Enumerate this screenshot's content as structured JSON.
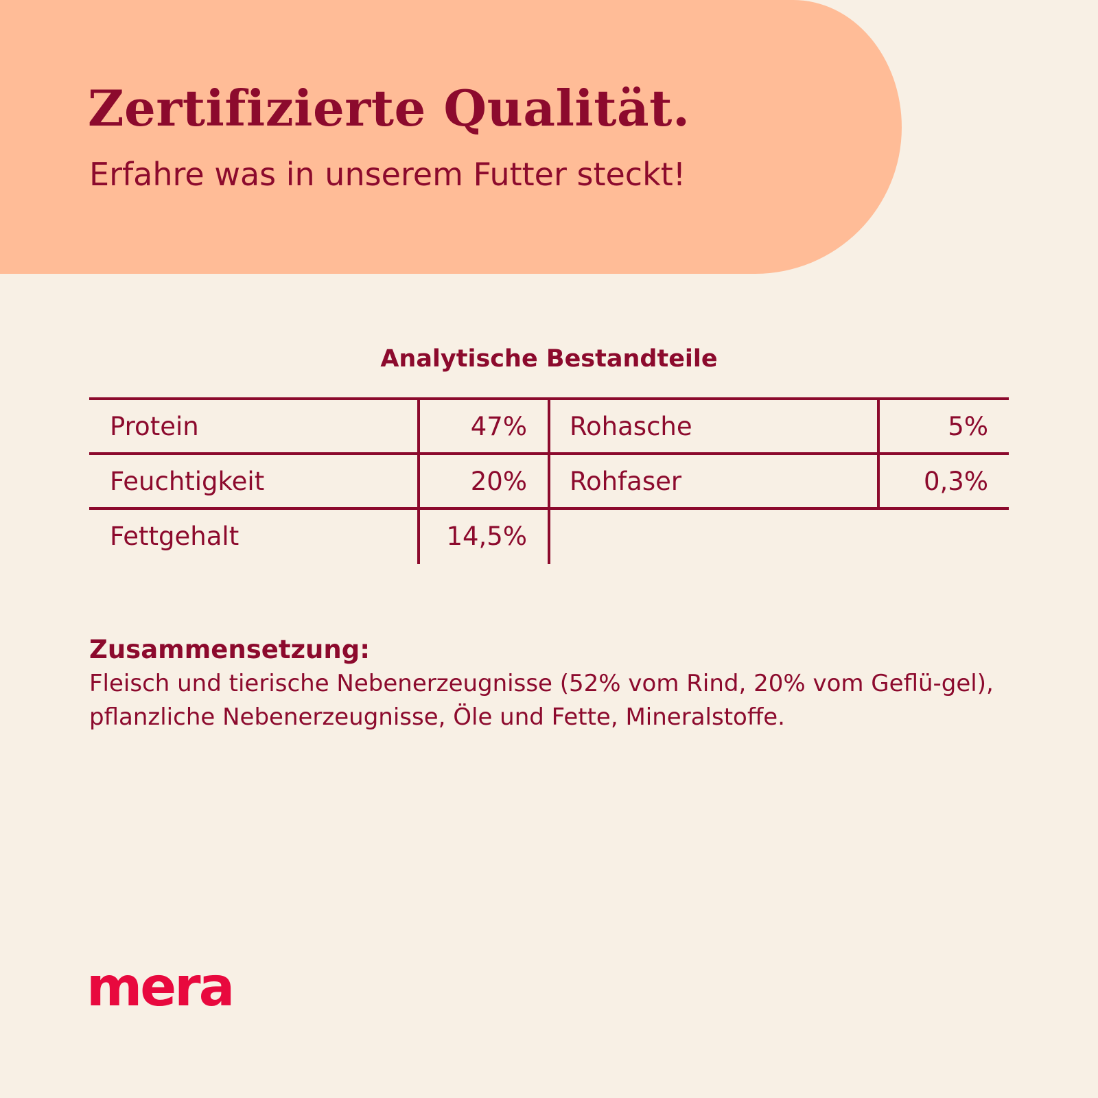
{
  "header": {
    "title": "Zertifizierte Qualität.",
    "subtitle": "Erfahre was in unserem Futter steckt!"
  },
  "analysis": {
    "title": "Analytische Bestandteile",
    "rows": [
      [
        {
          "label": "Protein",
          "value": "47%"
        },
        {
          "label": "Rohasche",
          "value": "5%"
        }
      ],
      [
        {
          "label": "Feuchtigkeit",
          "value": "20%"
        },
        {
          "label": "Rohfaser",
          "value": "0,3%"
        }
      ],
      [
        {
          "label": "Fettgehalt",
          "value": "14,5%"
        }
      ]
    ]
  },
  "composition": {
    "title": "Zusammensetzung:",
    "text": "Fleisch und tierische Nebenerzeugnisse (52% vom Rind, 20% vom Geflü-gel), pflanzliche Nebenerzeugnisse, Öle und Fette, Mineralstoffe."
  },
  "brand": {
    "logo_text": "mera"
  },
  "colors": {
    "background": "#f8f0e5",
    "hero": "#ffbc97",
    "text": "#8c0a2d",
    "brand": "#e8093e"
  }
}
